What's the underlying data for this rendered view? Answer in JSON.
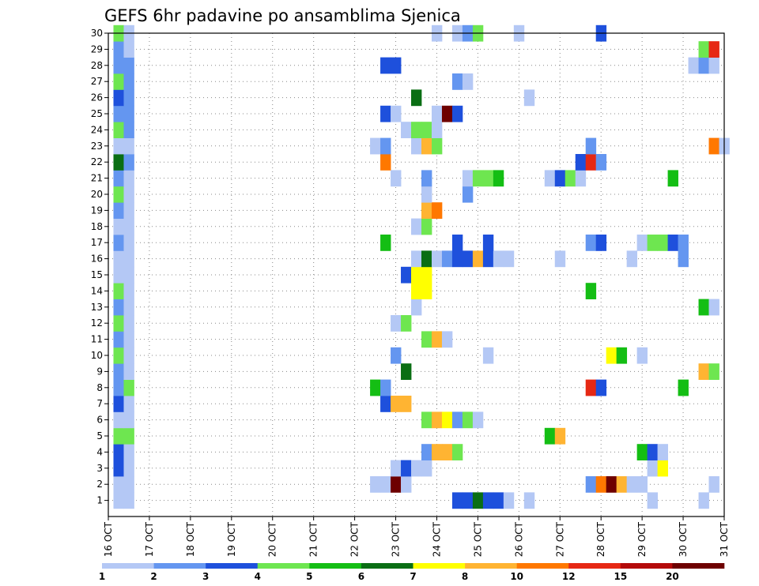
{
  "chart_data": {
    "type": "heatmap",
    "title": "GEFS 6hr padavine po ansamblima Sjenica",
    "xlabel": "",
    "ylabel": "",
    "x_tick_labels": [
      "16 OCT",
      "17 OCT",
      "18 OCT",
      "19 OCT",
      "20 OCT",
      "21 OCT",
      "22 OCT",
      "23 OCT",
      "24 OCT",
      "25 OCT",
      "26 OCT",
      "27 OCT",
      "28 OCT",
      "29 OCT",
      "30 OCT",
      "31 OCT"
    ],
    "y_tick_labels": [
      "1",
      "2",
      "3",
      "4",
      "5",
      "6",
      "7",
      "8",
      "9",
      "10",
      "11",
      "12",
      "13",
      "14",
      "15",
      "16",
      "17",
      "18",
      "19",
      "20",
      "21",
      "22",
      "23",
      "24",
      "25",
      "26",
      "27",
      "28",
      "29",
      "30"
    ],
    "x_range": [
      "16 OCT 00Z",
      "31 OCT 00Z"
    ],
    "y_range": [
      0,
      30
    ],
    "time_step_hours": 6,
    "grid": true,
    "colorbar": {
      "placement": "bottom",
      "levels": [
        "1",
        "2",
        "3",
        "4",
        "5",
        "6",
        "7",
        "8",
        "10",
        "12",
        "15",
        "20"
      ],
      "colors": [
        "#b4c8f5",
        "#6496f0",
        "#1e50dc",
        "#6ee650",
        "#14be14",
        "#0a6e14",
        "#ffff00",
        "#ffb432",
        "#ff7800",
        "#e62814",
        "#b40a0a",
        "#6e0000"
      ]
    },
    "cells": [
      {
        "member": 1,
        "time": "16 OCT 06Z",
        "class": 1
      },
      {
        "member": 1,
        "time": "16 OCT 12Z",
        "class": 1
      },
      {
        "member": 2,
        "time": "16 OCT 06Z",
        "class": 1
      },
      {
        "member": 2,
        "time": "16 OCT 12Z",
        "class": 1
      },
      {
        "member": 3,
        "time": "16 OCT 06Z",
        "class": 3
      },
      {
        "member": 3,
        "time": "16 OCT 12Z",
        "class": 1
      },
      {
        "member": 4,
        "time": "16 OCT 06Z",
        "class": 3
      },
      {
        "member": 4,
        "time": "16 OCT 12Z",
        "class": 1
      },
      {
        "member": 5,
        "time": "16 OCT 06Z",
        "class": 4
      },
      {
        "member": 5,
        "time": "16 OCT 12Z",
        "class": 4
      },
      {
        "member": 6,
        "time": "16 OCT 06Z",
        "class": 1
      },
      {
        "member": 6,
        "time": "16 OCT 12Z",
        "class": 1
      },
      {
        "member": 7,
        "time": "16 OCT 06Z",
        "class": 3
      },
      {
        "member": 7,
        "time": "16 OCT 12Z",
        "class": 1
      },
      {
        "member": 8,
        "time": "16 OCT 06Z",
        "class": 2
      },
      {
        "member": 8,
        "time": "16 OCT 12Z",
        "class": 4
      },
      {
        "member": 9,
        "time": "16 OCT 06Z",
        "class": 2
      },
      {
        "member": 9,
        "time": "16 OCT 12Z",
        "class": 1
      },
      {
        "member": 10,
        "time": "16 OCT 06Z",
        "class": 4
      },
      {
        "member": 10,
        "time": "16 OCT 12Z",
        "class": 1
      },
      {
        "member": 11,
        "time": "16 OCT 06Z",
        "class": 2
      },
      {
        "member": 11,
        "time": "16 OCT 12Z",
        "class": 1
      },
      {
        "member": 12,
        "time": "16 OCT 06Z",
        "class": 4
      },
      {
        "member": 12,
        "time": "16 OCT 12Z",
        "class": 1
      },
      {
        "member": 13,
        "time": "16 OCT 06Z",
        "class": 2
      },
      {
        "member": 13,
        "time": "16 OCT 12Z",
        "class": 1
      },
      {
        "member": 14,
        "time": "16 OCT 06Z",
        "class": 4
      },
      {
        "member": 14,
        "time": "16 OCT 12Z",
        "class": 1
      },
      {
        "member": 15,
        "time": "16 OCT 06Z",
        "class": 1
      },
      {
        "member": 15,
        "time": "16 OCT 12Z",
        "class": 1
      },
      {
        "member": 16,
        "time": "16 OCT 06Z",
        "class": 1
      },
      {
        "member": 16,
        "time": "16 OCT 12Z",
        "class": 1
      },
      {
        "member": 17,
        "time": "16 OCT 06Z",
        "class": 2
      },
      {
        "member": 17,
        "time": "16 OCT 12Z",
        "class": 1
      },
      {
        "member": 18,
        "time": "16 OCT 06Z",
        "class": 1
      },
      {
        "member": 18,
        "time": "16 OCT 12Z",
        "class": 1
      },
      {
        "member": 19,
        "time": "16 OCT 06Z",
        "class": 2
      },
      {
        "member": 19,
        "time": "16 OCT 12Z",
        "class": 1
      },
      {
        "member": 20,
        "time": "16 OCT 06Z",
        "class": 4
      },
      {
        "member": 20,
        "time": "16 OCT 12Z",
        "class": 1
      },
      {
        "member": 21,
        "time": "16 OCT 06Z",
        "class": 2
      },
      {
        "member": 21,
        "time": "16 OCT 12Z",
        "class": 1
      },
      {
        "member": 22,
        "time": "16 OCT 06Z",
        "class": 6
      },
      {
        "member": 22,
        "time": "16 OCT 12Z",
        "class": 2
      },
      {
        "member": 23,
        "time": "16 OCT 06Z",
        "class": 1
      },
      {
        "member": 23,
        "time": "16 OCT 12Z",
        "class": 1
      },
      {
        "member": 24,
        "time": "16 OCT 06Z",
        "class": 4
      },
      {
        "member": 24,
        "time": "16 OCT 12Z",
        "class": 2
      },
      {
        "member": 25,
        "time": "16 OCT 06Z",
        "class": 2
      },
      {
        "member": 25,
        "time": "16 OCT 12Z",
        "class": 2
      },
      {
        "member": 26,
        "time": "16 OCT 06Z",
        "class": 3
      },
      {
        "member": 26,
        "time": "16 OCT 12Z",
        "class": 2
      },
      {
        "member": 27,
        "time": "16 OCT 06Z",
        "class": 4
      },
      {
        "member": 27,
        "time": "16 OCT 12Z",
        "class": 2
      },
      {
        "member": 28,
        "time": "16 OCT 06Z",
        "class": 2
      },
      {
        "member": 28,
        "time": "16 OCT 12Z",
        "class": 2
      },
      {
        "member": 29,
        "time": "16 OCT 06Z",
        "class": 2
      },
      {
        "member": 29,
        "time": "16 OCT 12Z",
        "class": 1
      },
      {
        "member": 30,
        "time": "16 OCT 06Z",
        "class": 4
      },
      {
        "member": 30,
        "time": "16 OCT 12Z",
        "class": 1
      },
      {
        "member": 1,
        "time": "24 OCT 12Z",
        "class": 3
      },
      {
        "member": 1,
        "time": "24 OCT 18Z",
        "class": 3
      },
      {
        "member": 1,
        "time": "25 OCT 00Z",
        "class": 6
      },
      {
        "member": 1,
        "time": "25 OCT 06Z",
        "class": 3
      },
      {
        "member": 1,
        "time": "25 OCT 12Z",
        "class": 3
      },
      {
        "member": 1,
        "time": "25 OCT 18Z",
        "class": 1
      },
      {
        "member": 1,
        "time": "26 OCT 06Z",
        "class": 1
      },
      {
        "member": 1,
        "time": "29 OCT 06Z",
        "class": 1
      },
      {
        "member": 1,
        "time": "30 OCT 12Z",
        "class": 1
      },
      {
        "member": 2,
        "time": "22 OCT 12Z",
        "class": 1
      },
      {
        "member": 2,
        "time": "22 OCT 18Z",
        "class": 1
      },
      {
        "member": 2,
        "time": "23 OCT 00Z",
        "class": 12
      },
      {
        "member": 2,
        "time": "23 OCT 06Z",
        "class": 1
      },
      {
        "member": 2,
        "time": "27 OCT 18Z",
        "class": 2
      },
      {
        "member": 2,
        "time": "28 OCT 00Z",
        "class": 9
      },
      {
        "member": 2,
        "time": "28 OCT 06Z",
        "class": 12
      },
      {
        "member": 2,
        "time": "28 OCT 12Z",
        "class": 8
      },
      {
        "member": 2,
        "time": "28 OCT 18Z",
        "class": 1
      },
      {
        "member": 2,
        "time": "29 OCT 00Z",
        "class": 1
      },
      {
        "member": 2,
        "time": "30 OCT 18Z",
        "class": 1
      },
      {
        "member": 3,
        "time": "23 OCT 00Z",
        "class": 1
      },
      {
        "member": 3,
        "time": "23 OCT 06Z",
        "class": 3
      },
      {
        "member": 3,
        "time": "23 OCT 12Z",
        "class": 1
      },
      {
        "member": 3,
        "time": "23 OCT 18Z",
        "class": 1
      },
      {
        "member": 3,
        "time": "29 OCT 06Z",
        "class": 1
      },
      {
        "member": 3,
        "time": "29 OCT 12Z",
        "class": 7
      },
      {
        "member": 4,
        "time": "23 OCT 18Z",
        "class": 2
      },
      {
        "member": 4,
        "time": "24 OCT 00Z",
        "class": 8
      },
      {
        "member": 4,
        "time": "24 OCT 06Z",
        "class": 8
      },
      {
        "member": 4,
        "time": "24 OCT 12Z",
        "class": 4
      },
      {
        "member": 4,
        "time": "29 OCT 00Z",
        "class": 5
      },
      {
        "member": 4,
        "time": "29 OCT 06Z",
        "class": 3
      },
      {
        "member": 4,
        "time": "29 OCT 12Z",
        "class": 1
      },
      {
        "member": 5,
        "time": "26 OCT 18Z",
        "class": 5
      },
      {
        "member": 5,
        "time": "27 OCT 00Z",
        "class": 8
      },
      {
        "member": 6,
        "time": "23 OCT 18Z",
        "class": 4
      },
      {
        "member": 6,
        "time": "24 OCT 00Z",
        "class": 8
      },
      {
        "member": 6,
        "time": "24 OCT 06Z",
        "class": 7
      },
      {
        "member": 6,
        "time": "24 OCT 12Z",
        "class": 2
      },
      {
        "member": 6,
        "time": "24 OCT 18Z",
        "class": 4
      },
      {
        "member": 6,
        "time": "25 OCT 00Z",
        "class": 1
      },
      {
        "member": 7,
        "time": "22 OCT 18Z",
        "class": 3
      },
      {
        "member": 7,
        "time": "23 OCT 00Z",
        "class": 8
      },
      {
        "member": 7,
        "time": "23 OCT 06Z",
        "class": 8
      },
      {
        "member": 8,
        "time": "22 OCT 12Z",
        "class": 5
      },
      {
        "member": 8,
        "time": "22 OCT 18Z",
        "class": 2
      },
      {
        "member": 8,
        "time": "27 OCT 18Z",
        "class": 10
      },
      {
        "member": 8,
        "time": "28 OCT 00Z",
        "class": 3
      },
      {
        "member": 8,
        "time": "30 OCT 00Z",
        "class": 5
      },
      {
        "member": 9,
        "time": "23 OCT 06Z",
        "class": 6
      },
      {
        "member": 9,
        "time": "30 OCT 12Z",
        "class": 8
      },
      {
        "member": 9,
        "time": "30 OCT 18Z",
        "class": 4
      },
      {
        "member": 10,
        "time": "23 OCT 00Z",
        "class": 2
      },
      {
        "member": 10,
        "time": "25 OCT 06Z",
        "class": 1
      },
      {
        "member": 10,
        "time": "28 OCT 06Z",
        "class": 7
      },
      {
        "member": 10,
        "time": "28 OCT 12Z",
        "class": 5
      },
      {
        "member": 10,
        "time": "29 OCT 00Z",
        "class": 1
      },
      {
        "member": 11,
        "time": "23 OCT 18Z",
        "class": 4
      },
      {
        "member": 11,
        "time": "24 OCT 00Z",
        "class": 8
      },
      {
        "member": 11,
        "time": "24 OCT 06Z",
        "class": 1
      },
      {
        "member": 12,
        "time": "23 OCT 00Z",
        "class": 1
      },
      {
        "member": 12,
        "time": "23 OCT 06Z",
        "class": 4
      },
      {
        "member": 13,
        "time": "23 OCT 12Z",
        "class": 1
      },
      {
        "member": 13,
        "time": "30 OCT 12Z",
        "class": 5
      },
      {
        "member": 13,
        "time": "30 OCT 18Z",
        "class": 1
      },
      {
        "member": 14,
        "time": "23 OCT 12Z",
        "class": 7
      },
      {
        "member": 14,
        "time": "23 OCT 18Z",
        "class": 7
      },
      {
        "member": 14,
        "time": "27 OCT 18Z",
        "class": 5
      },
      {
        "member": 15,
        "time": "23 OCT 06Z",
        "class": 3
      },
      {
        "member": 15,
        "time": "23 OCT 12Z",
        "class": 7
      },
      {
        "member": 15,
        "time": "23 OCT 18Z",
        "class": 7
      },
      {
        "member": 16,
        "time": "23 OCT 12Z",
        "class": 1
      },
      {
        "member": 16,
        "time": "23 OCT 18Z",
        "class": 6
      },
      {
        "member": 16,
        "time": "24 OCT 00Z",
        "class": 1
      },
      {
        "member": 16,
        "time": "24 OCT 06Z",
        "class": 2
      },
      {
        "member": 16,
        "time": "24 OCT 12Z",
        "class": 3
      },
      {
        "member": 16,
        "time": "24 OCT 18Z",
        "class": 3
      },
      {
        "member": 16,
        "time": "25 OCT 00Z",
        "class": 8
      },
      {
        "member": 16,
        "time": "25 OCT 06Z",
        "class": 3
      },
      {
        "member": 16,
        "time": "25 OCT 12Z",
        "class": 1
      },
      {
        "member": 16,
        "time": "25 OCT 18Z",
        "class": 1
      },
      {
        "member": 16,
        "time": "27 OCT 00Z",
        "class": 1
      },
      {
        "member": 16,
        "time": "28 OCT 18Z",
        "class": 1
      },
      {
        "member": 16,
        "time": "30 OCT 00Z",
        "class": 2
      },
      {
        "member": 17,
        "time": "22 OCT 18Z",
        "class": 5
      },
      {
        "member": 17,
        "time": "24 OCT 12Z",
        "class": 3
      },
      {
        "member": 17,
        "time": "25 OCT 06Z",
        "class": 3
      },
      {
        "member": 17,
        "time": "27 OCT 18Z",
        "class": 2
      },
      {
        "member": 17,
        "time": "28 OCT 00Z",
        "class": 3
      },
      {
        "member": 17,
        "time": "29 OCT 00Z",
        "class": 1
      },
      {
        "member": 17,
        "time": "29 OCT 06Z",
        "class": 4
      },
      {
        "member": 17,
        "time": "29 OCT 12Z",
        "class": 4
      },
      {
        "member": 17,
        "time": "29 OCT 18Z",
        "class": 3
      },
      {
        "member": 17,
        "time": "30 OCT 00Z",
        "class": 2
      },
      {
        "member": 18,
        "time": "23 OCT 12Z",
        "class": 1
      },
      {
        "member": 18,
        "time": "23 OCT 18Z",
        "class": 4
      },
      {
        "member": 19,
        "time": "23 OCT 18Z",
        "class": 8
      },
      {
        "member": 19,
        "time": "24 OCT 00Z",
        "class": 9
      },
      {
        "member": 20,
        "time": "23 OCT 18Z",
        "class": 1
      },
      {
        "member": 20,
        "time": "24 OCT 18Z",
        "class": 2
      },
      {
        "member": 21,
        "time": "23 OCT 00Z",
        "class": 1
      },
      {
        "member": 21,
        "time": "23 OCT 18Z",
        "class": 2
      },
      {
        "member": 21,
        "time": "24 OCT 18Z",
        "class": 1
      },
      {
        "member": 21,
        "time": "25 OCT 00Z",
        "class": 4
      },
      {
        "member": 21,
        "time": "25 OCT 06Z",
        "class": 4
      },
      {
        "member": 21,
        "time": "25 OCT 12Z",
        "class": 5
      },
      {
        "member": 21,
        "time": "26 OCT 18Z",
        "class": 1
      },
      {
        "member": 21,
        "time": "27 OCT 00Z",
        "class": 3
      },
      {
        "member": 21,
        "time": "27 OCT 06Z",
        "class": 4
      },
      {
        "member": 21,
        "time": "27 OCT 12Z",
        "class": 1
      },
      {
        "member": 21,
        "time": "29 OCT 18Z",
        "class": 5
      },
      {
        "member": 22,
        "time": "22 OCT 18Z",
        "class": 9
      },
      {
        "member": 22,
        "time": "27 OCT 12Z",
        "class": 3
      },
      {
        "member": 22,
        "time": "27 OCT 18Z",
        "class": 10
      },
      {
        "member": 22,
        "time": "28 OCT 00Z",
        "class": 2
      },
      {
        "member": 23,
        "time": "22 OCT 12Z",
        "class": 1
      },
      {
        "member": 23,
        "time": "22 OCT 18Z",
        "class": 2
      },
      {
        "member": 23,
        "time": "23 OCT 12Z",
        "class": 1
      },
      {
        "member": 23,
        "time": "23 OCT 18Z",
        "class": 8
      },
      {
        "member": 23,
        "time": "24 OCT 00Z",
        "class": 4
      },
      {
        "member": 23,
        "time": "27 OCT 18Z",
        "class": 2
      },
      {
        "member": 23,
        "time": "30 OCT 18Z",
        "class": 9
      },
      {
        "member": 23,
        "time": "31 OCT 00Z",
        "class": 1
      },
      {
        "member": 24,
        "time": "23 OCT 06Z",
        "class": 1
      },
      {
        "member": 24,
        "time": "23 OCT 12Z",
        "class": 4
      },
      {
        "member": 24,
        "time": "23 OCT 18Z",
        "class": 4
      },
      {
        "member": 24,
        "time": "24 OCT 00Z",
        "class": 1
      },
      {
        "member": 25,
        "time": "22 OCT 18Z",
        "class": 3
      },
      {
        "member": 25,
        "time": "23 OCT 00Z",
        "class": 1
      },
      {
        "member": 25,
        "time": "24 OCT 00Z",
        "class": 1
      },
      {
        "member": 25,
        "time": "24 OCT 06Z",
        "class": 12
      },
      {
        "member": 25,
        "time": "24 OCT 12Z",
        "class": 3
      },
      {
        "member": 26,
        "time": "23 OCT 12Z",
        "class": 6
      },
      {
        "member": 26,
        "time": "26 OCT 06Z",
        "class": 1
      },
      {
        "member": 27,
        "time": "24 OCT 12Z",
        "class": 2
      },
      {
        "member": 27,
        "time": "24 OCT 18Z",
        "class": 1
      },
      {
        "member": 28,
        "time": "22 OCT 18Z",
        "class": 3
      },
      {
        "member": 28,
        "time": "23 OCT 00Z",
        "class": 3
      },
      {
        "member": 28,
        "time": "30 OCT 06Z",
        "class": 1
      },
      {
        "member": 28,
        "time": "30 OCT 12Z",
        "class": 2
      },
      {
        "member": 28,
        "time": "30 OCT 18Z",
        "class": 1
      },
      {
        "member": 29,
        "time": "30 OCT 12Z",
        "class": 4
      },
      {
        "member": 29,
        "time": "30 OCT 18Z",
        "class": 10
      },
      {
        "member": 30,
        "time": "24 OCT 00Z",
        "class": 1
      },
      {
        "member": 30,
        "time": "24 OCT 12Z",
        "class": 1
      },
      {
        "member": 30,
        "time": "24 OCT 18Z",
        "class": 2
      },
      {
        "member": 30,
        "time": "25 OCT 00Z",
        "class": 4
      },
      {
        "member": 30,
        "time": "26 OCT 00Z",
        "class": 1
      },
      {
        "member": 30,
        "time": "28 OCT 00Z",
        "class": 3
      }
    ]
  }
}
